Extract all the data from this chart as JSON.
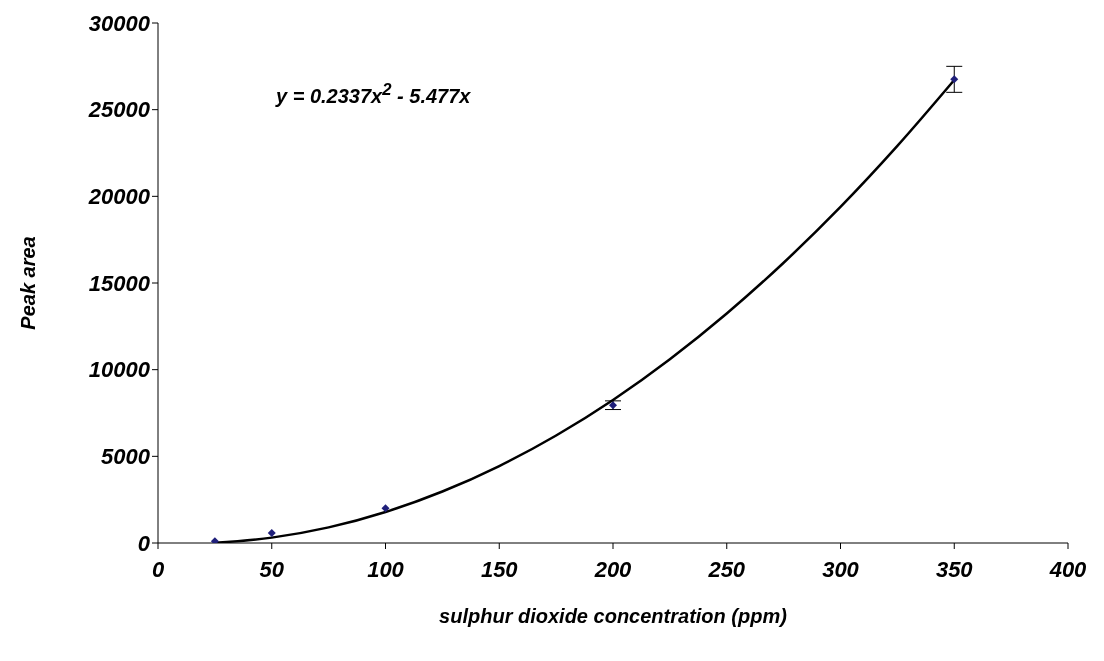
{
  "chart_data": {
    "type": "scatter",
    "xlabel": "sulphur dioxide concentration (ppm)",
    "ylabel": "Peak area",
    "annotations": [
      "y = 0.2337x$^{2}$ - 5.477x"
    ],
    "xlim": [
      0,
      400
    ],
    "xticks": [
      0,
      50,
      100,
      150,
      200,
      250,
      300,
      350,
      400
    ],
    "ylim": [
      0,
      30000
    ],
    "yticks": [
      0,
      5000,
      10000,
      15000,
      20000,
      25000,
      30000
    ],
    "grid": false,
    "legend": false,
    "marker": "diamond",
    "series": [
      {
        "color": "#1f1f7a",
        "x": [
          25,
          50,
          100,
          200,
          350
        ],
        "values": [
          100,
          580,
          2000,
          7950,
          26750
        ],
        "errors": [
          null,
          null,
          null,
          250,
          750
        ]
      },
      {
        "type": "line",
        "color": "#000000",
        "marker": "none",
        "x": [
          25,
          50,
          75,
          100,
          125,
          150,
          175,
          200,
          225,
          250,
          275,
          300,
          325,
          350
        ],
        "values": [
          10,
          310,
          900,
          1790,
          2970,
          4440,
          6200,
          8250,
          10600,
          13240,
          16170,
          19390,
          22910,
          26710
        ]
      }
    ]
  }
}
